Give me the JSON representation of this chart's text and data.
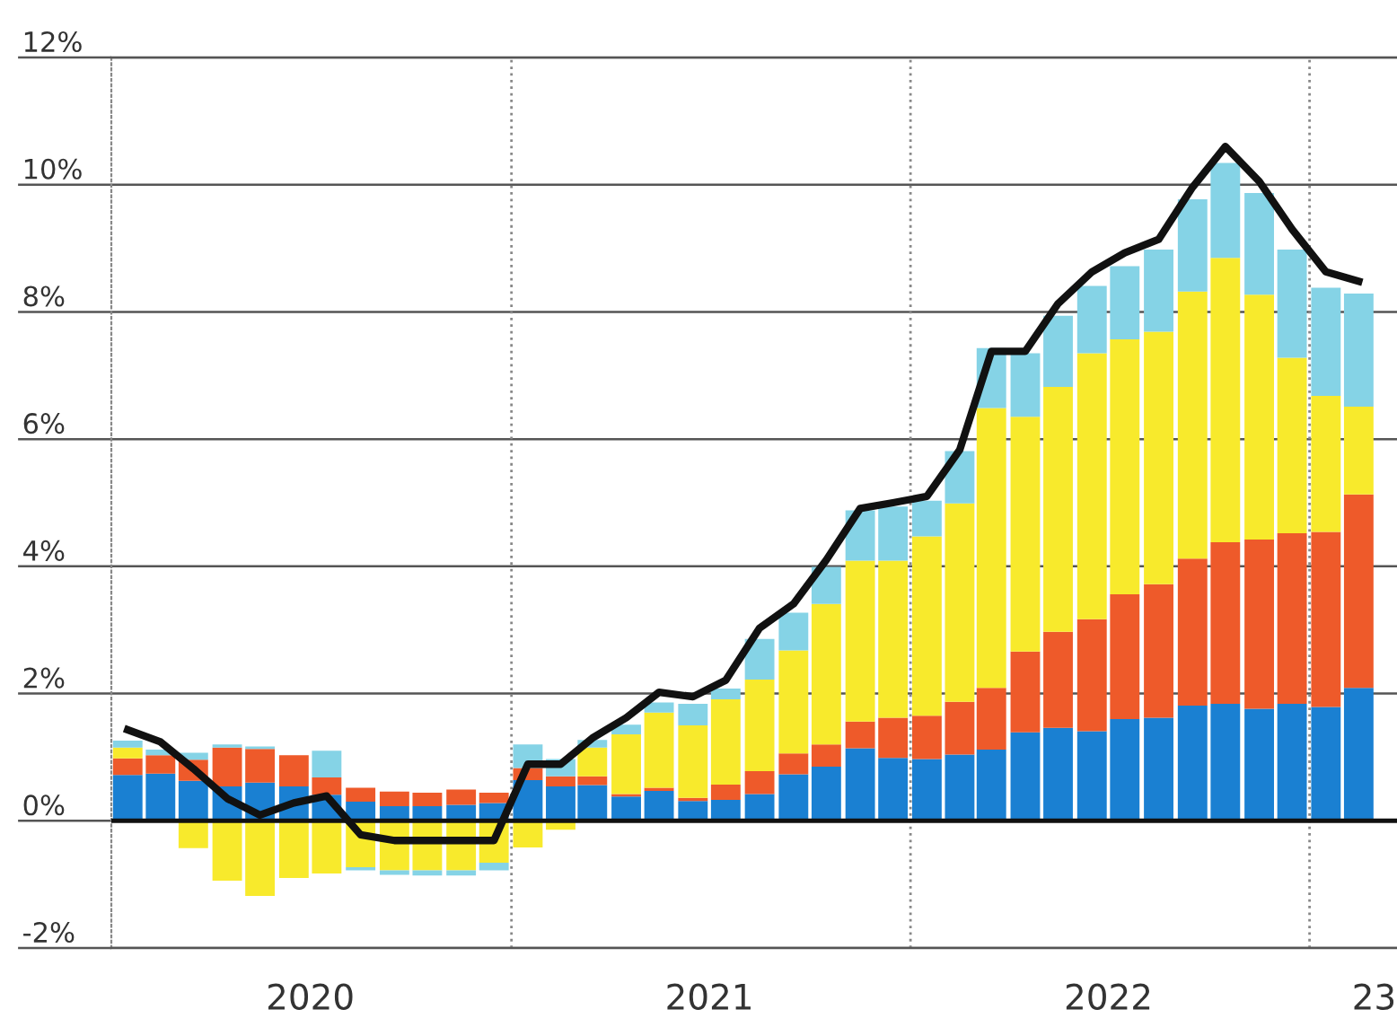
{
  "chart_data": {
    "type": "bar",
    "stacked": true,
    "x": [
      "2020-01-16",
      "2020-02-15",
      "2020-03-16",
      "2020-04-16",
      "2020-05-16",
      "2020-06-16",
      "2020-07-16",
      "2020-08-16",
      "2020-09-16",
      "2020-10-16",
      "2020-11-16",
      "2020-12-16",
      "2021-01-16",
      "2021-02-15",
      "2021-03-16",
      "2021-04-16",
      "2021-05-16",
      "2021-06-16",
      "2021-07-16",
      "2021-08-16",
      "2021-09-16",
      "2021-10-16",
      "2021-11-16",
      "2021-12-16",
      "2022-01-16",
      "2022-02-15",
      "2022-03-16",
      "2022-04-16",
      "2022-05-16",
      "2022-06-16",
      "2022-07-16",
      "2022-08-16",
      "2022-09-16",
      "2022-10-16",
      "2022-11-16",
      "2022-12-16",
      "2023-01-16",
      "2023-02-15"
    ],
    "series": [
      {
        "color": "#1a80d2",
        "values": [
          0.72,
          0.74,
          0.63,
          0.54,
          0.6,
          0.54,
          0.41,
          0.3,
          0.23,
          0.23,
          0.25,
          0.28,
          0.64,
          0.54,
          0.56,
          0.38,
          0.47,
          0.31,
          0.33,
          0.42,
          0.73,
          0.85,
          1.14,
          0.99,
          0.97,
          1.04,
          1.12,
          1.39,
          1.46,
          1.41,
          1.6,
          1.62,
          1.81,
          1.84,
          1.76,
          1.84,
          1.79,
          2.09
        ]
      },
      {
        "color": "#ee5a2a",
        "values": [
          0.26,
          0.29,
          0.33,
          0.61,
          0.53,
          0.49,
          0.27,
          0.22,
          0.23,
          0.21,
          0.24,
          0.16,
          0.19,
          0.16,
          0.14,
          0.04,
          0.05,
          0.05,
          0.24,
          0.36,
          0.33,
          0.35,
          0.42,
          0.63,
          0.68,
          0.83,
          0.97,
          1.27,
          1.51,
          1.76,
          1.96,
          2.1,
          2.31,
          2.54,
          2.66,
          2.68,
          2.75,
          3.04
        ]
      },
      {
        "color": "#f8ea2c",
        "values": [
          0.17,
          0,
          -0.43,
          -0.94,
          -1.18,
          -0.9,
          -0.83,
          -0.73,
          -0.78,
          -0.78,
          -0.78,
          -0.66,
          -0.42,
          -0.14,
          0.45,
          0.94,
          1.18,
          1.14,
          1.34,
          1.44,
          1.62,
          2.21,
          2.53,
          2.47,
          2.82,
          3.12,
          4.4,
          3.69,
          3.85,
          4.18,
          4.01,
          3.97,
          4.2,
          4.47,
          3.85,
          2.76,
          2.14,
          1.38
        ]
      },
      {
        "color": "#85d3e6",
        "values": [
          0.11,
          0.09,
          0.11,
          0.05,
          0.04,
          0,
          0.42,
          -0.05,
          -0.07,
          -0.08,
          -0.08,
          -0.12,
          0.37,
          0.27,
          0.12,
          0.15,
          0.16,
          0.34,
          0.17,
          0.64,
          0.59,
          0.58,
          0.79,
          0.85,
          0.56,
          0.82,
          0.94,
          1.0,
          1.12,
          1.06,
          1.15,
          1.29,
          1.45,
          1.49,
          1.6,
          1.7,
          1.7,
          1.78
        ]
      },
      {
        "type": "line",
        "color": "#111111",
        "values": [
          1.43,
          1.24,
          0.82,
          0.35,
          0.09,
          0.28,
          0.39,
          -0.22,
          -0.31,
          -0.31,
          -0.31,
          -0.31,
          0.89,
          0.89,
          1.3,
          1.62,
          2.02,
          1.95,
          2.21,
          3.03,
          3.41,
          4.1,
          4.91,
          5.0,
          5.1,
          5.83,
          7.38,
          7.38,
          8.13,
          8.63,
          8.93,
          9.14,
          9.96,
          10.6,
          10.05,
          9.3,
          8.63,
          8.48
        ]
      }
    ],
    "ylim": [
      -2,
      12
    ],
    "yticks": [
      {
        "value": -2,
        "label": "-2%"
      },
      {
        "value": 0,
        "label": "0%"
      },
      {
        "value": 2,
        "label": "2%"
      },
      {
        "value": 4,
        "label": "4%"
      },
      {
        "value": 6,
        "label": "6%"
      },
      {
        "value": 8,
        "label": "8%"
      },
      {
        "value": 10,
        "label": "10%"
      },
      {
        "value": 12,
        "label": "12%"
      }
    ],
    "xlim": [
      "2020-01-01",
      "2023-03-22"
    ],
    "xticks": [
      {
        "value": "2020-07-01",
        "label": "2020"
      },
      {
        "value": "2021-07-01",
        "label": "2021"
      },
      {
        "value": "2022-07-01",
        "label": "2022"
      },
      {
        "value": "2023-03-01",
        "label": "23"
      }
    ],
    "grid": "y",
    "ref_lines": [
      {
        "axis": "y",
        "value": 0,
        "label": null,
        "color": "#111111"
      },
      {
        "axis": "x",
        "value": "2021-01-01",
        "label": null,
        "line_style": "dotted",
        "color": "#888888"
      },
      {
        "axis": "x",
        "value": "2022-01-01",
        "label": null,
        "line_style": "dotted",
        "color": "#888888"
      },
      {
        "axis": "x",
        "value": "2023-01-01",
        "label": null,
        "line_style": "dotted",
        "color": "#888888"
      }
    ]
  }
}
